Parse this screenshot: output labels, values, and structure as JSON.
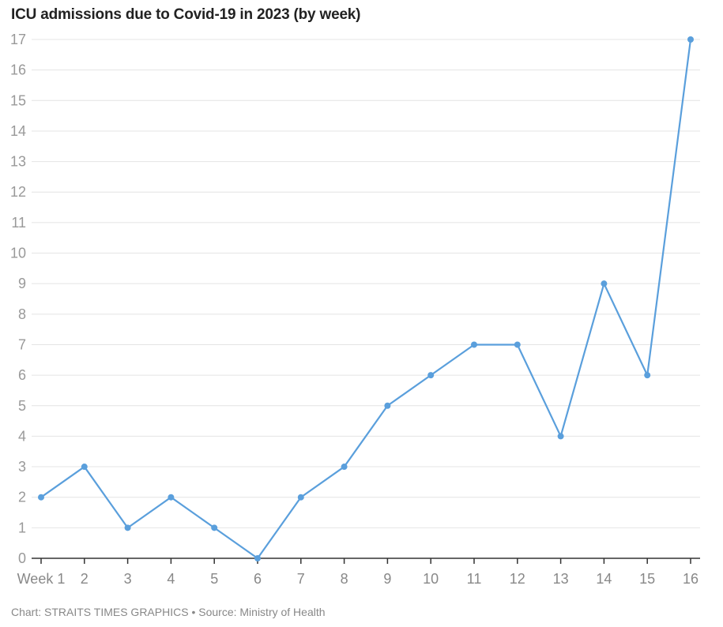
{
  "chart_data": {
    "type": "line",
    "title": "ICU admissions due to Covid-19 in 2023 (by week)",
    "xlabel": "",
    "ylabel": "",
    "categories": [
      "Week 1",
      "2",
      "3",
      "4",
      "5",
      "6",
      "7",
      "8",
      "9",
      "10",
      "11",
      "12",
      "13",
      "14",
      "15",
      "16"
    ],
    "values": [
      2,
      3,
      1,
      2,
      1,
      0,
      2,
      3,
      5,
      6,
      7,
      7,
      4,
      9,
      6,
      17
    ],
    "ylim": [
      0,
      17
    ],
    "yticks": [
      0,
      1,
      2,
      3,
      4,
      5,
      6,
      7,
      8,
      9,
      10,
      11,
      12,
      13,
      14,
      15,
      16,
      17
    ],
    "grid": true,
    "legend": "none",
    "line_color": "#5a9fdc",
    "footer": "Chart: STRAITS TIMES GRAPHICS • Source: Ministry of Health"
  }
}
